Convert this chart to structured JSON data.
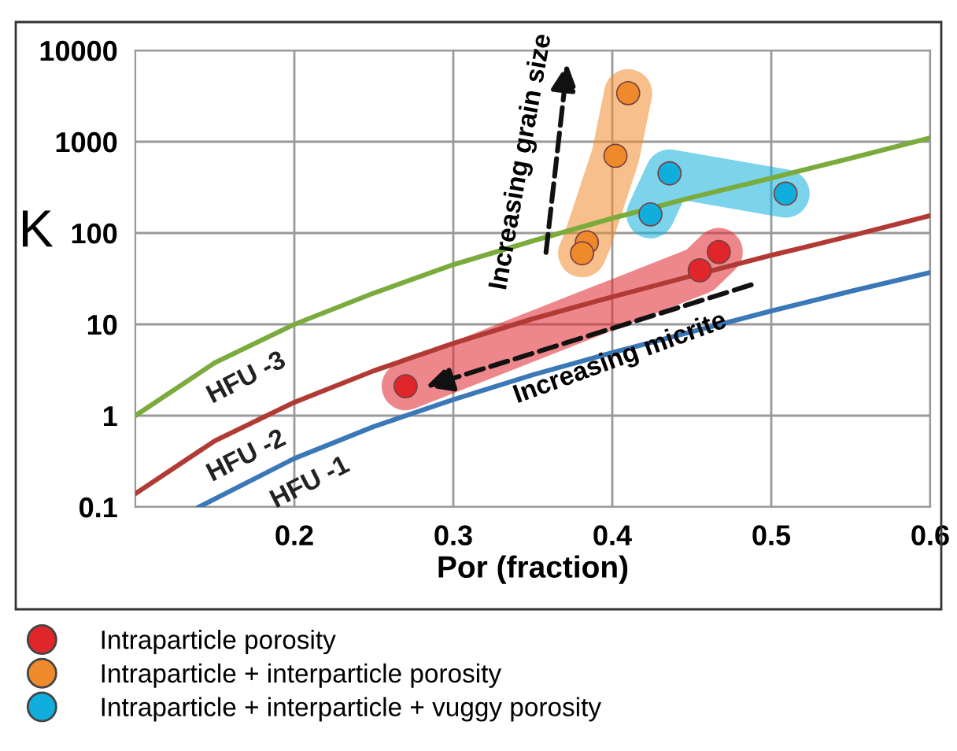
{
  "chart_data": {
    "type": "line",
    "xlabel": "Por (fraction)",
    "ylabel": "K",
    "log": "y",
    "xlim": [
      0.1,
      0.6
    ],
    "xticks": [
      0.2,
      0.3,
      0.4,
      0.5,
      0.6
    ],
    "ylim": [
      0.1,
      10000
    ],
    "yticks": [
      0.1,
      1,
      10,
      100,
      1000,
      10000
    ],
    "grid": true,
    "legend": "bottom",
    "annotations": [
      "Increasing grain size",
      "Increasing micrite"
    ],
    "series": [
      {
        "name": "HFU -3",
        "color": "#7aab3c",
        "x": [
          0.1,
          0.15,
          0.2,
          0.25,
          0.3,
          0.35,
          0.4,
          0.45,
          0.5,
          0.55,
          0.6
        ],
        "values": [
          1,
          3.8,
          10,
          22,
          45,
          82,
          145,
          245,
          400,
          660,
          1100
        ]
      },
      {
        "name": "HFU -2",
        "color": "#b23a35",
        "x": [
          0.1,
          0.15,
          0.2,
          0.25,
          0.3,
          0.35,
          0.4,
          0.45,
          0.5,
          0.55,
          0.6
        ],
        "values": [
          0.14,
          0.53,
          1.4,
          3.1,
          6.2,
          11.5,
          20,
          34,
          57,
          93,
          155
        ]
      },
      {
        "name": "HFU -1",
        "color": "#3a78b8",
        "x": [
          0.14,
          0.2,
          0.25,
          0.3,
          0.35,
          0.4,
          0.45,
          0.5,
          0.55,
          0.6
        ],
        "values": [
          0.1,
          0.34,
          0.76,
          1.5,
          2.8,
          4.9,
          8.3,
          14,
          23,
          37
        ]
      },
      {
        "name": "Intraparticle porosity",
        "type": "scatter",
        "marker": "circle",
        "color": "#e0252b",
        "x": [
          0.27,
          0.455,
          0.467
        ],
        "values": [
          2.1,
          39,
          62
        ]
      },
      {
        "name": "Intraparticle + interparticle porosity",
        "type": "scatter",
        "marker": "circle",
        "color": "#ee8a2c",
        "x": [
          0.41,
          0.402,
          0.384,
          0.381
        ],
        "values": [
          3400,
          700,
          79,
          60
        ]
      },
      {
        "name": "Intraparticle + interparticle + vuggy porosity",
        "type": "scatter",
        "marker": "circle",
        "color": "#10aedc",
        "x": [
          0.436,
          0.424,
          0.509
        ],
        "values": [
          450,
          160,
          270
        ]
      }
    ]
  }
}
